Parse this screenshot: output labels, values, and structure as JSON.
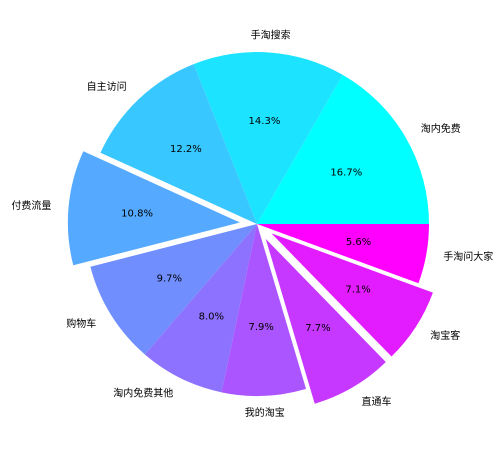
{
  "chart_data": {
    "type": "pie",
    "categories": [
      "淘内免费",
      "手淘搜索",
      "自主访问",
      "付费流量",
      "购物车",
      "淘内免费其他",
      "我的淘宝",
      "直通车",
      "淘宝客",
      "手淘问大家"
    ],
    "values": [
      16.7,
      14.3,
      12.2,
      10.8,
      9.7,
      8.0,
      7.9,
      7.7,
      7.1,
      5.6
    ],
    "value_labels": [
      "16.7%",
      "14.3%",
      "12.2%",
      "10.8%",
      "9.7%",
      "8.0%",
      "7.9%",
      "7.7%",
      "7.1%",
      "5.6%"
    ],
    "colors": [
      "#00ffff",
      "#1ce3ff",
      "#38c7ff",
      "#55aaff",
      "#718eff",
      "#8d72ff",
      "#aa55ff",
      "#c638ff",
      "#e31cff",
      "#ff00ff"
    ],
    "explode": [
      0,
      0,
      0,
      0.1,
      0,
      0,
      0,
      0.1,
      0.1,
      0
    ],
    "start_angle": 0,
    "direction": "counterclockwise"
  }
}
